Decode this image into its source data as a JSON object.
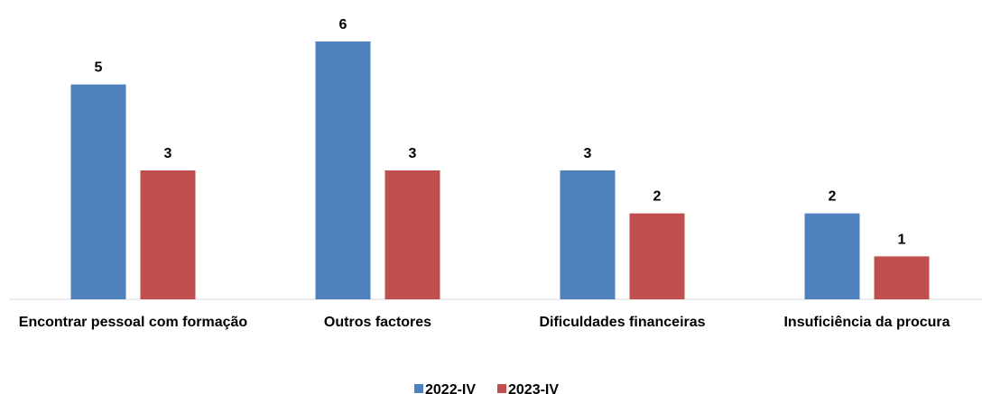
{
  "chart_data": {
    "type": "bar",
    "categories": [
      "Encontrar pessoal com formação",
      "Outros factores",
      "Dificuldades financeiras",
      "Insuficiência da procura"
    ],
    "series": [
      {
        "name": "2022-IV",
        "color": "#4f81bd",
        "values": [
          5,
          6,
          3,
          2
        ]
      },
      {
        "name": "2023-IV",
        "color": "#c0504d",
        "values": [
          3,
          3,
          2,
          1
        ]
      }
    ],
    "ylim": [
      0,
      6
    ],
    "legend": "bottom"
  }
}
